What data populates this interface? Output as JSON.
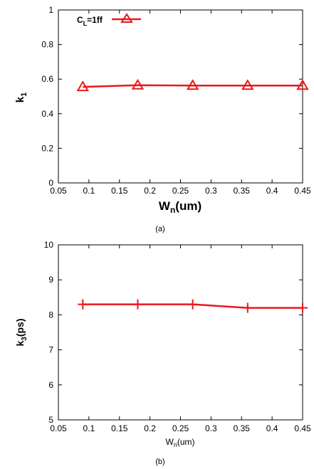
{
  "colors": {
    "series": "#e8191c",
    "axis": "#000000"
  },
  "chart_data": [
    {
      "type": "line",
      "caption": "(a)",
      "xlabel_main": "W",
      "xlabel_sub": "n",
      "xlabel_tail": "(um)",
      "ylabel_main": "k",
      "ylabel_sub": "1",
      "ylabel_tail": "",
      "xlim": [
        0.05,
        0.45
      ],
      "ylim": [
        0,
        1
      ],
      "xticks": [
        "0.05",
        "0.1",
        "0.15",
        "0.2",
        "0.25",
        "0.3",
        "0.35",
        "0.4",
        "0.45"
      ],
      "yticks": [
        "0",
        "0.2",
        "0.4",
        "0.6",
        "0.8",
        "1"
      ],
      "marker": "triangle",
      "legend_position": "top-left",
      "series": [
        {
          "legend_main": "C",
          "legend_sub": "L",
          "legend_tail": "=1ff",
          "x": [
            0.09,
            0.18,
            0.27,
            0.36,
            0.45
          ],
          "y": [
            0.555,
            0.565,
            0.563,
            0.563,
            0.563
          ]
        }
      ]
    },
    {
      "type": "line",
      "caption": "(b)",
      "xlabel_main": "W",
      "xlabel_sub": "n",
      "xlabel_tail": "(um)",
      "ylabel_main": "k",
      "ylabel_sub": "3",
      "ylabel_tail": "(ps)",
      "xlim": [
        0.05,
        0.45
      ],
      "ylim": [
        5,
        10
      ],
      "xticks": [
        "0.05",
        "0.1",
        "0.15",
        "0.2",
        "0.25",
        "0.3",
        "0.35",
        "0.4",
        "0.45"
      ],
      "yticks": [
        "5",
        "6",
        "7",
        "8",
        "9",
        "10"
      ],
      "marker": "plus",
      "series": [
        {
          "x": [
            0.09,
            0.18,
            0.27,
            0.36,
            0.45
          ],
          "y": [
            8.3,
            8.3,
            8.3,
            8.2,
            8.2
          ]
        }
      ]
    }
  ]
}
